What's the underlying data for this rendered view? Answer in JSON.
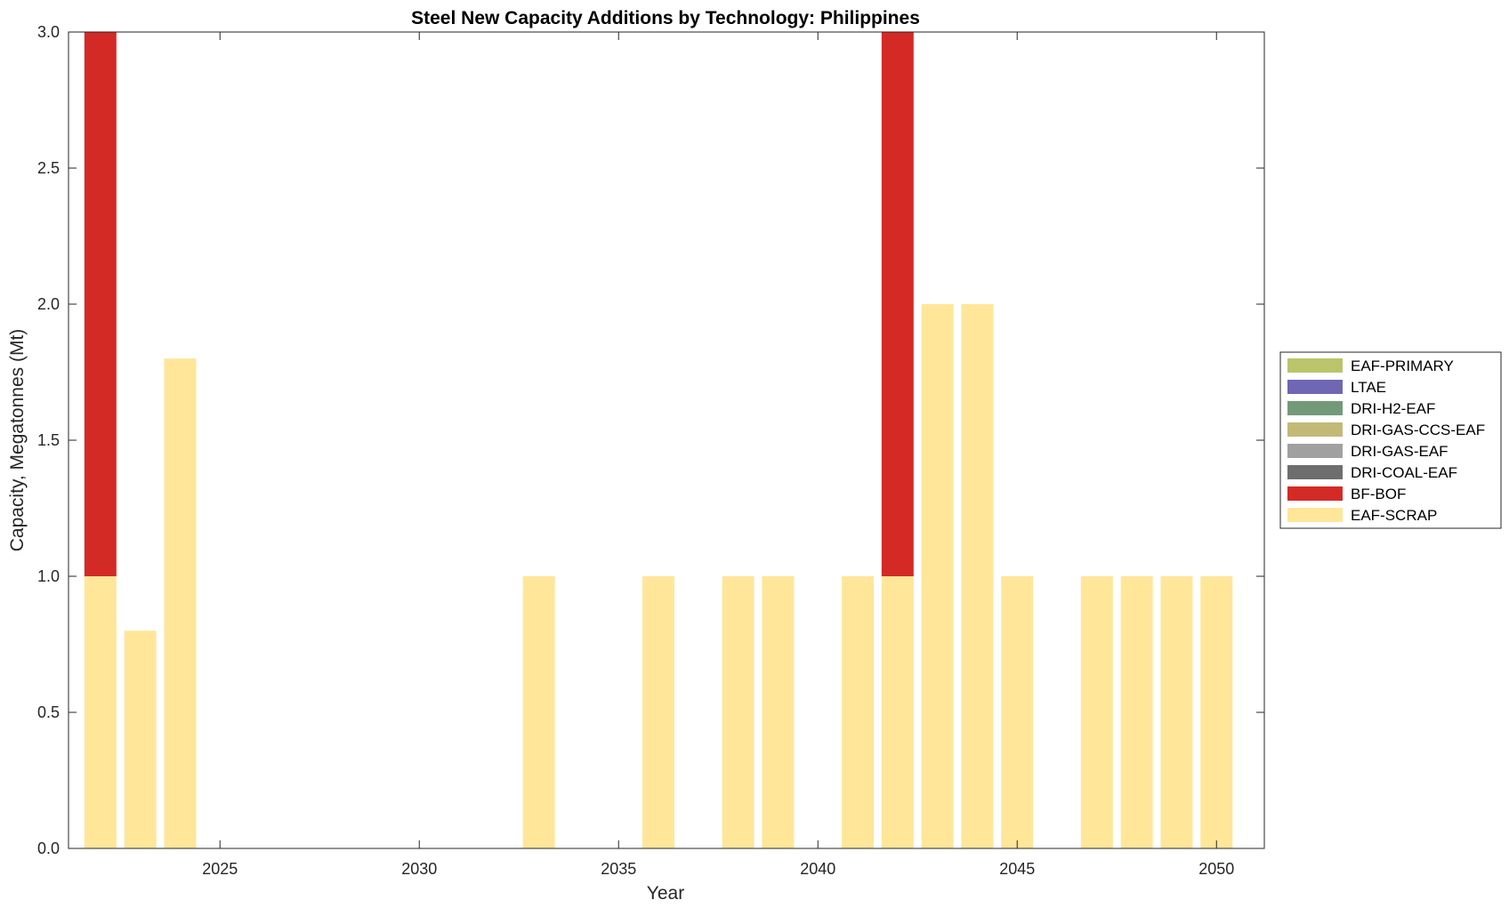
{
  "chart_data": {
    "type": "bar",
    "stacked": true,
    "title": "Steel New Capacity Additions by Technology: Philippines",
    "xlabel": "Year",
    "ylabel": "Capacity, Megatonnes (Mt)",
    "xlim": [
      2021.2,
      2051.2
    ],
    "ylim": [
      0,
      3
    ],
    "x_ticks": [
      2025,
      2030,
      2035,
      2040,
      2045,
      2050
    ],
    "y_ticks": [
      0.0,
      0.5,
      1.0,
      1.5,
      2.0,
      2.5,
      3.0
    ],
    "y_tick_labels": [
      "0.0",
      "0.5",
      "1.0",
      "1.5",
      "2.0",
      "2.5",
      "3.0"
    ],
    "grid": false,
    "legend_position": "right",
    "categories": [
      2022,
      2023,
      2024,
      2025,
      2026,
      2027,
      2028,
      2029,
      2030,
      2031,
      2032,
      2033,
      2034,
      2035,
      2036,
      2037,
      2038,
      2039,
      2040,
      2041,
      2042,
      2043,
      2044,
      2045,
      2046,
      2047,
      2048,
      2049,
      2050
    ],
    "series": [
      {
        "name": "EAF-SCRAP",
        "color": "#ffe699",
        "values": [
          1.0,
          0.8,
          1.8,
          0,
          0,
          0,
          0,
          0,
          0,
          0,
          0,
          1.0,
          0,
          0,
          1.0,
          0,
          1.0,
          1.0,
          0,
          1.0,
          1.0,
          2.0,
          2.0,
          1.0,
          0,
          1.0,
          1.0,
          1.0,
          1.0
        ]
      },
      {
        "name": "BF-BOF",
        "color": "#d42a26",
        "values": [
          2.0,
          0,
          0,
          0,
          0,
          0,
          0,
          0,
          0,
          0,
          0,
          0,
          0,
          0,
          0,
          0,
          0,
          0,
          0,
          0,
          2.0,
          0,
          0,
          0,
          0,
          0,
          0,
          0,
          0
        ]
      },
      {
        "name": "DRI-COAL-EAF",
        "color": "#6e6e6e",
        "values": [
          0,
          0,
          0,
          0,
          0,
          0,
          0,
          0,
          0,
          0,
          0,
          0,
          0,
          0,
          0,
          0,
          0,
          0,
          0,
          0,
          0,
          0,
          0,
          0,
          0,
          0,
          0,
          0,
          0
        ]
      },
      {
        "name": "DRI-GAS-EAF",
        "color": "#a0a0a0",
        "values": [
          0,
          0,
          0,
          0,
          0,
          0,
          0,
          0,
          0,
          0,
          0,
          0,
          0,
          0,
          0,
          0,
          0,
          0,
          0,
          0,
          0,
          0,
          0,
          0,
          0,
          0,
          0,
          0,
          0
        ]
      },
      {
        "name": "DRI-GAS-CCS-EAF",
        "color": "#c3b977",
        "values": [
          0,
          0,
          0,
          0,
          0,
          0,
          0,
          0,
          0,
          0,
          0,
          0,
          0,
          0,
          0,
          0,
          0,
          0,
          0,
          0,
          0,
          0,
          0,
          0,
          0,
          0,
          0,
          0,
          0
        ]
      },
      {
        "name": "DRI-H2-EAF",
        "color": "#739a78",
        "values": [
          0,
          0,
          0,
          0,
          0,
          0,
          0,
          0,
          0,
          0,
          0,
          0,
          0,
          0,
          0,
          0,
          0,
          0,
          0,
          0,
          0,
          0,
          0,
          0,
          0,
          0,
          0,
          0,
          0
        ]
      },
      {
        "name": "LTAE",
        "color": "#6f66b4",
        "values": [
          0,
          0,
          0,
          0,
          0,
          0,
          0,
          0,
          0,
          0,
          0,
          0,
          0,
          0,
          0,
          0,
          0,
          0,
          0,
          0,
          0,
          0,
          0,
          0,
          0,
          0,
          0,
          0,
          0
        ]
      },
      {
        "name": "EAF-PRIMARY",
        "color": "#bac46a",
        "values": [
          0,
          0,
          0,
          0,
          0,
          0,
          0,
          0,
          0,
          0,
          0,
          0,
          0,
          0,
          0,
          0,
          0,
          0,
          0,
          0,
          0,
          0,
          0,
          0,
          0,
          0,
          0,
          0,
          0
        ]
      }
    ],
    "legend_order": [
      "EAF-PRIMARY",
      "LTAE",
      "DRI-H2-EAF",
      "DRI-GAS-CCS-EAF",
      "DRI-GAS-EAF",
      "DRI-COAL-EAF",
      "BF-BOF",
      "EAF-SCRAP"
    ]
  }
}
